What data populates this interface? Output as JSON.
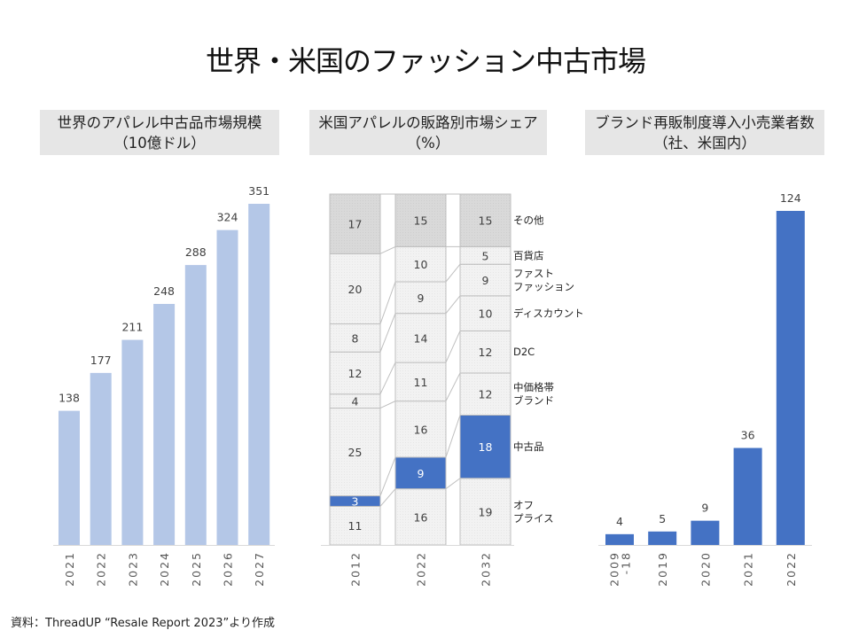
{
  "title": "世界・米国のファッション中古市場",
  "panels": {
    "left": {
      "title_line1": "世界のアパレル中古品市場規模",
      "title_line2": "（10億ドル）"
    },
    "middle": {
      "title_line1": "米国アパレルの販路別市場シェア",
      "title_line2": "（%）"
    },
    "right": {
      "title_line1": "ブランド再販制度導入小売業者数",
      "title_line2": "（社、米国内）"
    }
  },
  "source": "資料：ThreadUP “Resale Report 2023”より作成",
  "colors": {
    "light_blue": "#b4c7e7",
    "blue": "#4472c4",
    "gray_other": "#d9d9d9",
    "light_gray": "#f2f2f2",
    "border": "#bfbfbf",
    "axis": "#d9d9d9"
  },
  "chart_data": [
    {
      "type": "bar",
      "title": "世界のアパレル中古品市場規模（10億ドル）",
      "xlabel": "",
      "ylabel": "",
      "categories": [
        "2021",
        "2022",
        "2023",
        "2024",
        "2025",
        "2026",
        "2027"
      ],
      "values": [
        138,
        177,
        211,
        248,
        288,
        324,
        351
      ],
      "ylim": [
        0,
        351
      ],
      "grid": false,
      "data_labels": true
    },
    {
      "type": "bar",
      "stacked": true,
      "percent": true,
      "title": "米国アパレルの販路別市場シェア（%）",
      "categories": [
        "2012",
        "2022",
        "2032"
      ],
      "series": [
        {
          "name": "オフプライス",
          "label_lines": [
            "オフ",
            "プライス"
          ],
          "values": [
            11,
            16,
            19
          ]
        },
        {
          "name": "中古品",
          "label_lines": [
            "中古品"
          ],
          "values": [
            3,
            9,
            18
          ],
          "highlight": true
        },
        {
          "name": "中価格帯ブランド",
          "label_lines": [
            "中価格帯",
            "ブランド"
          ],
          "values": [
            25,
            16,
            12
          ]
        },
        {
          "name": "D2C",
          "label_lines": [
            "D2C"
          ],
          "values": [
            4,
            11,
            12
          ]
        },
        {
          "name": "ディスカウント",
          "label_lines": [
            "ディスカウント"
          ],
          "values": [
            12,
            14,
            10
          ]
        },
        {
          "name": "ファストファッション",
          "label_lines": [
            "ファスト",
            "ファッション"
          ],
          "values": [
            8,
            9,
            9
          ]
        },
        {
          "name": "百貨店",
          "label_lines": [
            "百貨店"
          ],
          "values": [
            20,
            10,
            5
          ]
        },
        {
          "name": "その他",
          "label_lines": [
            "その他"
          ],
          "values": [
            17,
            15,
            15
          ]
        }
      ],
      "ylim": [
        0,
        100
      ],
      "legend": "right",
      "grid": false
    },
    {
      "type": "bar",
      "title": "ブランド再販制度導入小売業者数（社、米国内）",
      "categories": [
        "2009-18",
        "2019",
        "2020",
        "2021",
        "2022"
      ],
      "category_label_lines": [
        [
          "2009",
          "-18"
        ],
        [
          "2019"
        ],
        [
          "2020"
        ],
        [
          "2021"
        ],
        [
          "2022"
        ]
      ],
      "values": [
        4,
        5,
        9,
        36,
        124
      ],
      "ylim": [
        0,
        124
      ],
      "grid": false,
      "data_labels": true
    }
  ]
}
